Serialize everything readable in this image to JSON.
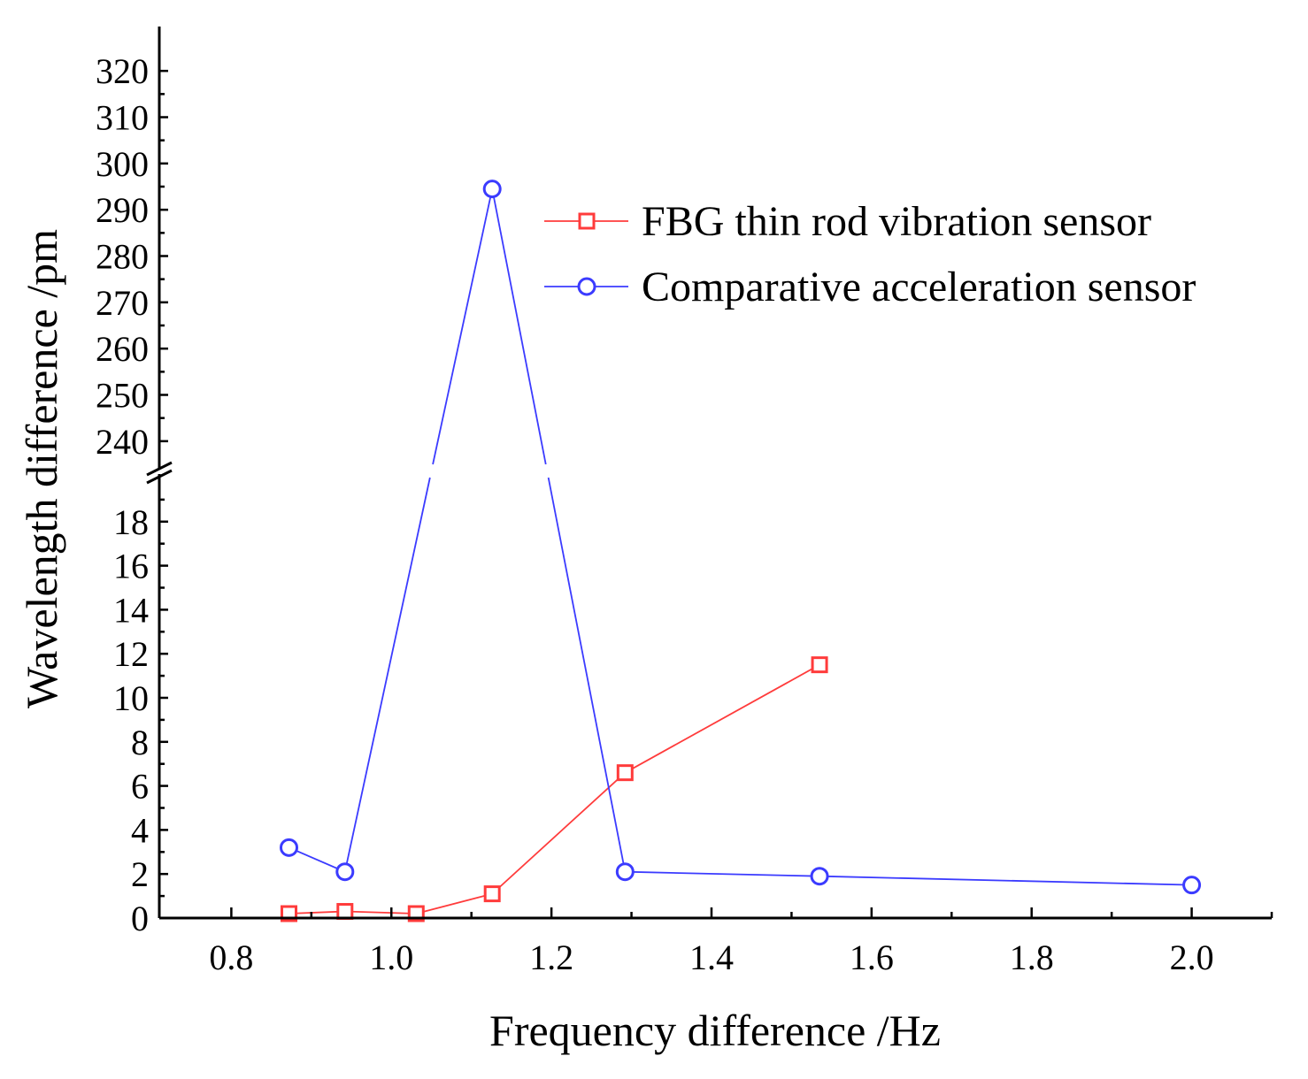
{
  "chart_data": {
    "type": "line",
    "title": "",
    "xlabel": "Frequency difference /Hz",
    "ylabel": "Wavelength difference /pm",
    "xlim": [
      0.71,
      2.1
    ],
    "ylim_lower": [
      0,
      20
    ],
    "ylim_upper": [
      235,
      325
    ],
    "axis_break": true,
    "x_ticks": [
      "0.8",
      "1.0",
      "1.2",
      "1.4",
      "1.6",
      "1.8",
      "2.0"
    ],
    "y_ticks_lower": [
      "0",
      "2",
      "4",
      "6",
      "8",
      "10",
      "12",
      "14",
      "16",
      "18"
    ],
    "y_ticks_upper": [
      "240",
      "250",
      "260",
      "270",
      "280",
      "290",
      "300",
      "310",
      "320"
    ],
    "legend_position": "top-right",
    "grid": false,
    "series": [
      {
        "name": "FBG thin rod vibration sensor",
        "color": "#ff3b3b",
        "marker": "square",
        "x": [
          0.872,
          0.942,
          1.031,
          1.126,
          1.292,
          1.535
        ],
        "y": [
          0.2,
          0.3,
          0.2,
          1.1,
          6.6,
          11.5
        ]
      },
      {
        "name": "Comparative acceleration sensor",
        "color": "#3b3bff",
        "marker": "circle",
        "x": [
          0.872,
          0.942,
          1.126,
          1.292,
          1.535,
          2.0
        ],
        "y": [
          3.2,
          2.1,
          294.5,
          2.1,
          1.9,
          1.5
        ]
      }
    ]
  }
}
